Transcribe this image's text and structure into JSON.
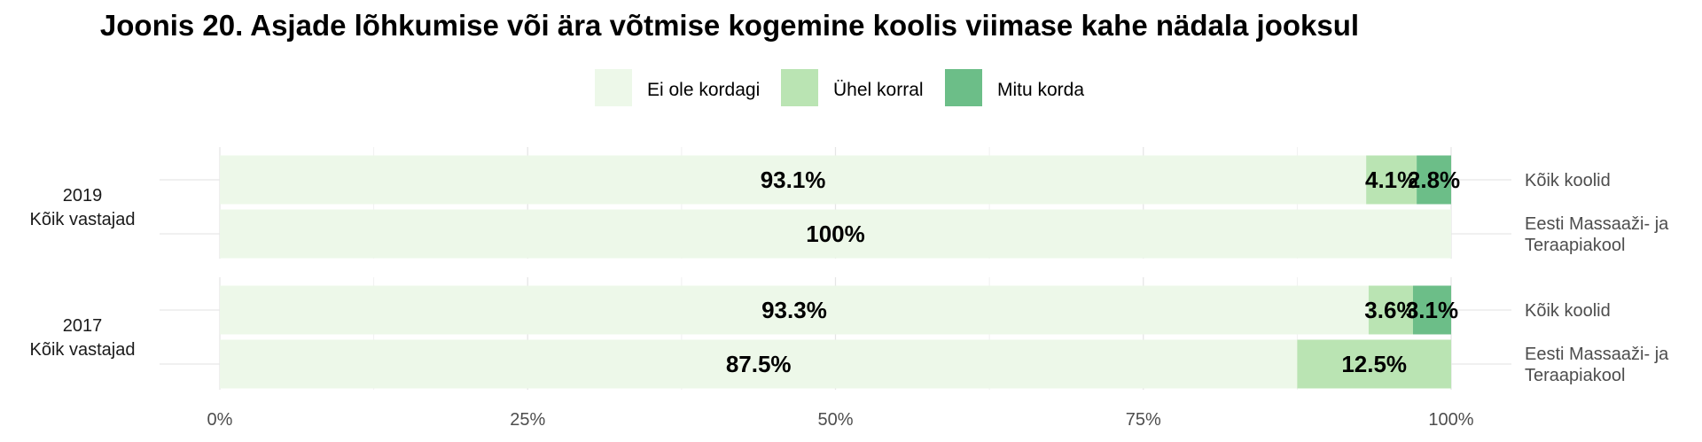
{
  "chart_data": {
    "type": "bar",
    "orientation": "horizontal",
    "stacked": true,
    "title": "Joonis 20. Asjade lõhkumise või ära võtmise kogemine koolis viimase kahe nädala jooksul",
    "legend_position": "top",
    "xlim": [
      0,
      100
    ],
    "x_ticks": [
      "0%",
      "25%",
      "50%",
      "75%",
      "100%"
    ],
    "grid": true,
    "series": [
      {
        "name": "Ei ole kordagi",
        "color": "#edf8e9"
      },
      {
        "name": "Ühel korral",
        "color": "#bae4b3"
      },
      {
        "name": "Mitu korda",
        "color": "#6cbe88"
      }
    ],
    "panels": [
      {
        "label_lines": [
          "2019",
          "Kõik vastajad"
        ],
        "rows": [
          {
            "label_lines": [
              "Kõik koolid"
            ],
            "values": [
              93.1,
              4.1,
              2.8
            ],
            "labels": [
              "93.1%",
              "4.1%",
              "2.8%"
            ]
          },
          {
            "label_lines": [
              "Eesti Massaaži- ja",
              "Teraapiakool"
            ],
            "values": [
              100,
              0,
              0
            ],
            "labels": [
              "100%",
              "",
              ""
            ]
          }
        ]
      },
      {
        "label_lines": [
          "2017",
          "Kõik vastajad"
        ],
        "rows": [
          {
            "label_lines": [
              "Kõik koolid"
            ],
            "values": [
              93.3,
              3.6,
              3.1
            ],
            "labels": [
              "93.3%",
              "3.6%",
              "3.1%"
            ]
          },
          {
            "label_lines": [
              "Eesti Massaaži- ja",
              "Teraapiakool"
            ],
            "values": [
              87.5,
              12.5,
              0
            ],
            "labels": [
              "87.5%",
              "12.5%",
              ""
            ]
          }
        ]
      }
    ]
  }
}
